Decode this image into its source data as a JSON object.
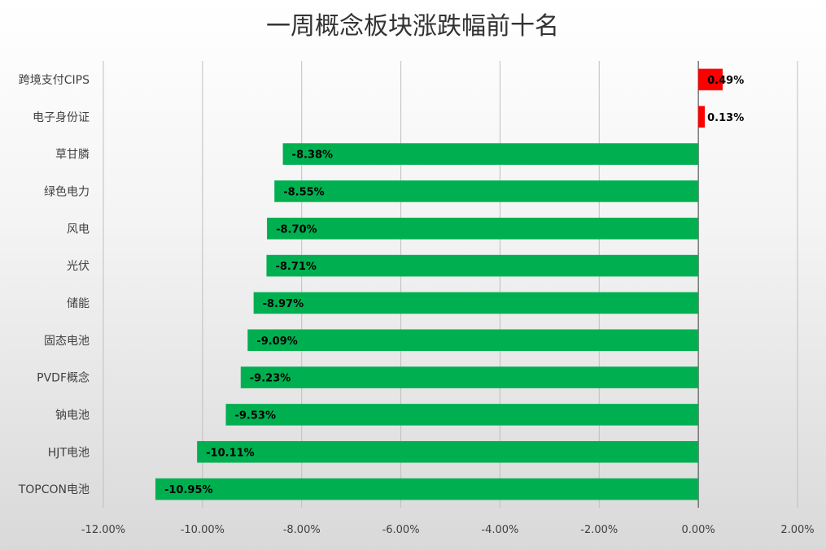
{
  "chart_data": {
    "type": "bar",
    "orientation": "horizontal",
    "title": "一周概念板块涨跌幅前十名",
    "categories": [
      "跨境支付CIPS",
      "电子身份证",
      "草甘膦",
      "绿色电力",
      "风电",
      "光伏",
      "储能",
      "固态电池",
      "PVDF概念",
      "钠电池",
      "HJT电池",
      "TOPCON电池"
    ],
    "values": [
      0.49,
      0.13,
      -8.38,
      -8.55,
      -8.7,
      -8.71,
      -8.97,
      -9.09,
      -9.23,
      -9.53,
      -10.11,
      -10.95
    ],
    "data_labels": [
      "0.49%",
      "0.13%",
      "-8.38%",
      "-8.55%",
      "-8.70%",
      "-8.71%",
      "-8.97%",
      "-9.09%",
      "-9.23%",
      "-9.53%",
      "-10.11%",
      "-10.95%"
    ],
    "xlim": [
      -12,
      2
    ],
    "x_ticks": [
      -12,
      -10,
      -8,
      -6,
      -4,
      -2,
      0,
      2
    ],
    "x_tick_labels": [
      "-12.00%",
      "-10.00%",
      "-8.00%",
      "-6.00%",
      "-4.00%",
      "-2.00%",
      "0.00%",
      "2.00%"
    ],
    "xlabel": "",
    "ylabel": "",
    "grid": true,
    "legend": "none",
    "colors": {
      "positive": "#ff0000",
      "negative": "#00b050",
      "gridline": "#bfbfbf",
      "zero_line": "#595959"
    }
  }
}
